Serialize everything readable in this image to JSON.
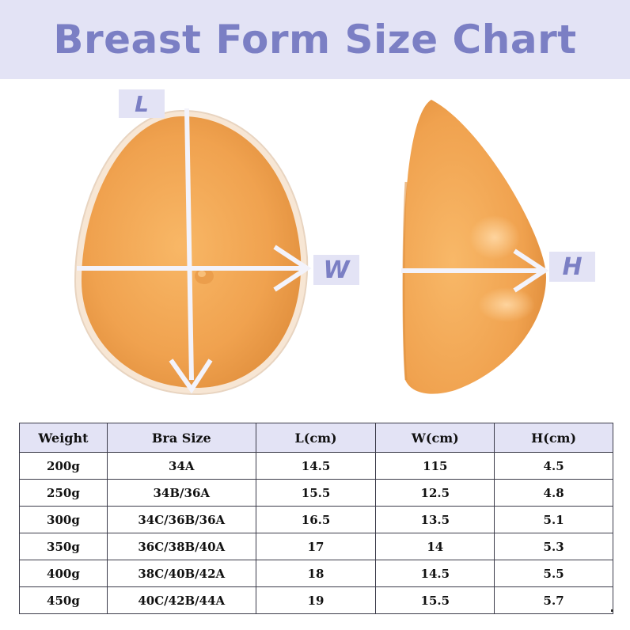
{
  "title": "Breast Form Size Chart",
  "labels": {
    "length": "L",
    "width": "W",
    "height": "H"
  },
  "colors": {
    "accent": "#7b7fc4",
    "header_bg": "#e3e3f5",
    "form": "#f0a24f"
  },
  "table": {
    "headers": [
      "Weight",
      "Bra Size",
      "L(cm)",
      "W(cm)",
      "H(cm)"
    ],
    "rows": [
      [
        "200g",
        "34A",
        "14.5",
        "115",
        "4.5"
      ],
      [
        "250g",
        "34B/36A",
        "15.5",
        "12.5",
        "4.8"
      ],
      [
        "300g",
        "34C/36B/36A",
        "16.5",
        "13.5",
        "5.1"
      ],
      [
        "350g",
        "36C/38B/40A",
        "17",
        "14",
        "5.3"
      ],
      [
        "400g",
        "38C/40B/42A",
        "18",
        "14.5",
        "5.5"
      ],
      [
        "450g",
        "40C/42B/44A",
        "19",
        "15.5",
        "5.7"
      ]
    ]
  }
}
